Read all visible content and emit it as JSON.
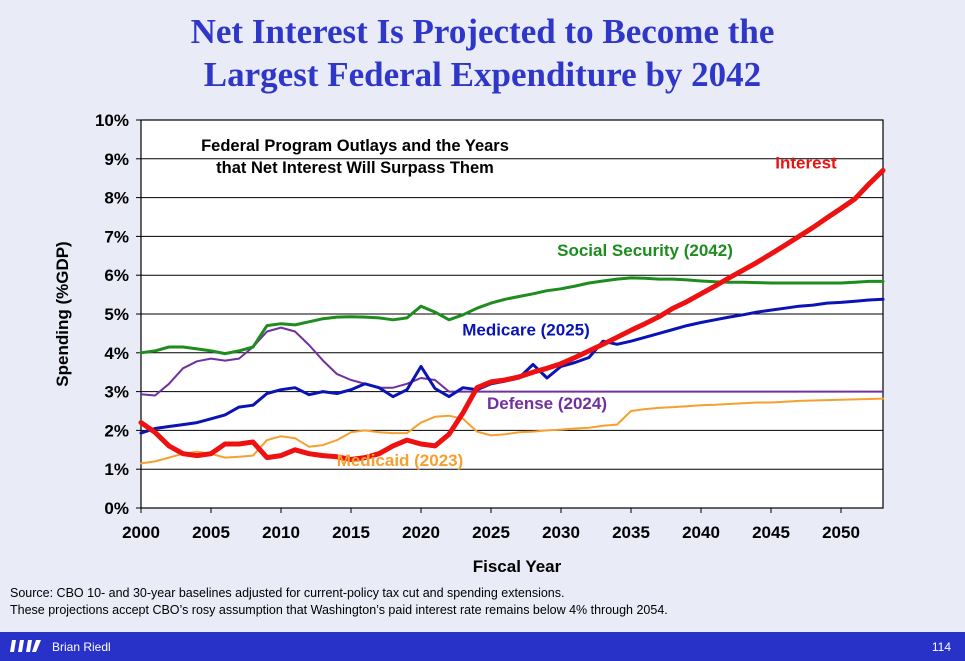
{
  "slide": {
    "title_line1": "Net Interest Is Projected to Become the",
    "title_line2": "Largest Federal Expenditure by 2042",
    "source_line1": "Source: CBO 10- and 30-year baselines adjusted for current-policy tax cut and spending extensions.",
    "source_line2": "These projections accept CBO’s rosy assumption that Washington’s paid interest rate remains below 4% through 2054.",
    "author": "Brian Riedl",
    "page_number": "114",
    "logo_icon": "bars-logo-icon"
  },
  "chart_data": {
    "type": "line",
    "title_line1": "Federal Program Outlays and the Years",
    "title_line2": "that Net Interest Will Surpass Them",
    "xlabel": "Fiscal Year",
    "ylabel": "Spending (%GDP)",
    "xlim": [
      2000,
      2053
    ],
    "ylim": [
      0,
      10
    ],
    "x_ticks": [
      2000,
      2005,
      2010,
      2015,
      2020,
      2025,
      2030,
      2035,
      2040,
      2045,
      2050
    ],
    "y_ticks": [
      "0%",
      "1%",
      "2%",
      "3%",
      "4%",
      "5%",
      "6%",
      "7%",
      "8%",
      "9%",
      "10%"
    ],
    "grid": "horizontal",
    "series": [
      {
        "name": "Social Security",
        "label": "Social Security (2042)",
        "color": "#1e8c1e",
        "values": [
          [
            2000,
            4.0
          ],
          [
            2001,
            4.05
          ],
          [
            2002,
            4.15
          ],
          [
            2003,
            4.15
          ],
          [
            2004,
            4.1
          ],
          [
            2005,
            4.05
          ],
          [
            2006,
            3.98
          ],
          [
            2007,
            4.05
          ],
          [
            2008,
            4.15
          ],
          [
            2009,
            4.7
          ],
          [
            2010,
            4.75
          ],
          [
            2011,
            4.72
          ],
          [
            2012,
            4.8
          ],
          [
            2013,
            4.88
          ],
          [
            2014,
            4.92
          ],
          [
            2015,
            4.93
          ],
          [
            2016,
            4.92
          ],
          [
            2017,
            4.9
          ],
          [
            2018,
            4.85
          ],
          [
            2019,
            4.9
          ],
          [
            2020,
            5.2
          ],
          [
            2021,
            5.05
          ],
          [
            2022,
            4.85
          ],
          [
            2023,
            4.98
          ],
          [
            2024,
            5.15
          ],
          [
            2025,
            5.28
          ],
          [
            2026,
            5.38
          ],
          [
            2027,
            5.45
          ],
          [
            2028,
            5.52
          ],
          [
            2029,
            5.6
          ],
          [
            2030,
            5.65
          ],
          [
            2031,
            5.72
          ],
          [
            2032,
            5.8
          ],
          [
            2033,
            5.85
          ],
          [
            2034,
            5.9
          ],
          [
            2035,
            5.93
          ],
          [
            2036,
            5.92
          ],
          [
            2037,
            5.9
          ],
          [
            2038,
            5.9
          ],
          [
            2039,
            5.88
          ],
          [
            2040,
            5.85
          ],
          [
            2041,
            5.83
          ],
          [
            2042,
            5.82
          ],
          [
            2043,
            5.82
          ],
          [
            2044,
            5.81
          ],
          [
            2045,
            5.8
          ],
          [
            2046,
            5.8
          ],
          [
            2047,
            5.8
          ],
          [
            2048,
            5.8
          ],
          [
            2049,
            5.8
          ],
          [
            2050,
            5.8
          ],
          [
            2051,
            5.82
          ],
          [
            2052,
            5.84
          ],
          [
            2053,
            5.84
          ]
        ]
      },
      {
        "name": "Medicare",
        "label": "Medicare (2025)",
        "color": "#0a14b4",
        "values": [
          [
            2000,
            1.93
          ],
          [
            2001,
            2.05
          ],
          [
            2002,
            2.1
          ],
          [
            2003,
            2.15
          ],
          [
            2004,
            2.2
          ],
          [
            2005,
            2.3
          ],
          [
            2006,
            2.4
          ],
          [
            2007,
            2.6
          ],
          [
            2008,
            2.65
          ],
          [
            2009,
            2.95
          ],
          [
            2010,
            3.05
          ],
          [
            2011,
            3.1
          ],
          [
            2012,
            2.92
          ],
          [
            2013,
            3.0
          ],
          [
            2014,
            2.95
          ],
          [
            2015,
            3.05
          ],
          [
            2016,
            3.2
          ],
          [
            2017,
            3.1
          ],
          [
            2018,
            2.87
          ],
          [
            2019,
            3.05
          ],
          [
            2020,
            3.65
          ],
          [
            2021,
            3.08
          ],
          [
            2022,
            2.87
          ],
          [
            2023,
            3.1
          ],
          [
            2024,
            3.05
          ],
          [
            2025,
            3.2
          ],
          [
            2026,
            3.27
          ],
          [
            2027,
            3.35
          ],
          [
            2028,
            3.7
          ],
          [
            2029,
            3.35
          ],
          [
            2030,
            3.65
          ],
          [
            2031,
            3.75
          ],
          [
            2032,
            3.88
          ],
          [
            2033,
            4.3
          ],
          [
            2034,
            4.22
          ],
          [
            2035,
            4.3
          ],
          [
            2036,
            4.4
          ],
          [
            2037,
            4.5
          ],
          [
            2038,
            4.6
          ],
          [
            2039,
            4.7
          ],
          [
            2040,
            4.78
          ],
          [
            2041,
            4.85
          ],
          [
            2042,
            4.92
          ],
          [
            2043,
            4.98
          ],
          [
            2044,
            5.05
          ],
          [
            2045,
            5.1
          ],
          [
            2046,
            5.15
          ],
          [
            2047,
            5.2
          ],
          [
            2048,
            5.23
          ],
          [
            2049,
            5.28
          ],
          [
            2050,
            5.3
          ],
          [
            2051,
            5.33
          ],
          [
            2052,
            5.36
          ],
          [
            2053,
            5.38
          ]
        ]
      },
      {
        "name": "Defense",
        "label": "Defense (2024)",
        "color": "#7030a0",
        "values": [
          [
            2000,
            2.93
          ],
          [
            2001,
            2.9
          ],
          [
            2002,
            3.2
          ],
          [
            2003,
            3.6
          ],
          [
            2004,
            3.78
          ],
          [
            2005,
            3.85
          ],
          [
            2006,
            3.8
          ],
          [
            2007,
            3.85
          ],
          [
            2008,
            4.15
          ],
          [
            2009,
            4.55
          ],
          [
            2010,
            4.65
          ],
          [
            2011,
            4.55
          ],
          [
            2012,
            4.2
          ],
          [
            2013,
            3.8
          ],
          [
            2014,
            3.45
          ],
          [
            2015,
            3.3
          ],
          [
            2016,
            3.2
          ],
          [
            2017,
            3.1
          ],
          [
            2018,
            3.1
          ],
          [
            2019,
            3.2
          ],
          [
            2020,
            3.35
          ],
          [
            2021,
            3.3
          ],
          [
            2022,
            3.0
          ],
          [
            2023,
            3.0
          ],
          [
            2024,
            3.0
          ],
          [
            2025,
            3.0
          ],
          [
            2030,
            3.0
          ],
          [
            2035,
            3.0
          ],
          [
            2040,
            3.0
          ],
          [
            2045,
            3.0
          ],
          [
            2050,
            3.0
          ],
          [
            2053,
            3.0
          ]
        ]
      },
      {
        "name": "Medicaid",
        "label": "Medicaid (2023)",
        "color": "#f5a030",
        "values": [
          [
            2000,
            1.15
          ],
          [
            2001,
            1.2
          ],
          [
            2002,
            1.3
          ],
          [
            2003,
            1.4
          ],
          [
            2004,
            1.45
          ],
          [
            2005,
            1.4
          ],
          [
            2006,
            1.3
          ],
          [
            2007,
            1.32
          ],
          [
            2008,
            1.35
          ],
          [
            2009,
            1.75
          ],
          [
            2010,
            1.85
          ],
          [
            2011,
            1.8
          ],
          [
            2012,
            1.58
          ],
          [
            2013,
            1.62
          ],
          [
            2014,
            1.75
          ],
          [
            2015,
            1.95
          ],
          [
            2016,
            2.0
          ],
          [
            2017,
            1.95
          ],
          [
            2018,
            1.93
          ],
          [
            2019,
            1.93
          ],
          [
            2020,
            2.2
          ],
          [
            2021,
            2.35
          ],
          [
            2022,
            2.38
          ],
          [
            2023,
            2.3
          ],
          [
            2024,
            1.97
          ],
          [
            2025,
            1.87
          ],
          [
            2026,
            1.9
          ],
          [
            2027,
            1.95
          ],
          [
            2028,
            1.97
          ],
          [
            2029,
            2.0
          ],
          [
            2030,
            2.02
          ],
          [
            2031,
            2.05
          ],
          [
            2032,
            2.07
          ],
          [
            2033,
            2.12
          ],
          [
            2034,
            2.15
          ],
          [
            2035,
            2.5
          ],
          [
            2036,
            2.55
          ],
          [
            2037,
            2.58
          ],
          [
            2038,
            2.6
          ],
          [
            2039,
            2.62
          ],
          [
            2040,
            2.65
          ],
          [
            2041,
            2.66
          ],
          [
            2042,
            2.68
          ],
          [
            2043,
            2.7
          ],
          [
            2044,
            2.72
          ],
          [
            2045,
            2.72
          ],
          [
            2046,
            2.74
          ],
          [
            2047,
            2.76
          ],
          [
            2048,
            2.77
          ],
          [
            2049,
            2.78
          ],
          [
            2050,
            2.79
          ],
          [
            2051,
            2.8
          ],
          [
            2052,
            2.81
          ],
          [
            2053,
            2.82
          ]
        ]
      },
      {
        "name": "Interest",
        "label": "Interest",
        "color": "#ee1111",
        "values": [
          [
            2000,
            2.2
          ],
          [
            2001,
            1.95
          ],
          [
            2002,
            1.6
          ],
          [
            2003,
            1.4
          ],
          [
            2004,
            1.35
          ],
          [
            2005,
            1.4
          ],
          [
            2006,
            1.65
          ],
          [
            2007,
            1.65
          ],
          [
            2008,
            1.7
          ],
          [
            2009,
            1.3
          ],
          [
            2010,
            1.35
          ],
          [
            2011,
            1.5
          ],
          [
            2012,
            1.4
          ],
          [
            2013,
            1.35
          ],
          [
            2014,
            1.32
          ],
          [
            2015,
            1.25
          ],
          [
            2016,
            1.3
          ],
          [
            2017,
            1.4
          ],
          [
            2018,
            1.6
          ],
          [
            2019,
            1.75
          ],
          [
            2020,
            1.65
          ],
          [
            2021,
            1.6
          ],
          [
            2022,
            1.9
          ],
          [
            2023,
            2.45
          ],
          [
            2024,
            3.1
          ],
          [
            2025,
            3.25
          ],
          [
            2026,
            3.3
          ],
          [
            2027,
            3.38
          ],
          [
            2028,
            3.5
          ],
          [
            2029,
            3.6
          ],
          [
            2030,
            3.72
          ],
          [
            2031,
            3.88
          ],
          [
            2032,
            4.05
          ],
          [
            2033,
            4.22
          ],
          [
            2034,
            4.4
          ],
          [
            2035,
            4.58
          ],
          [
            2036,
            4.75
          ],
          [
            2037,
            4.93
          ],
          [
            2038,
            5.15
          ],
          [
            2039,
            5.32
          ],
          [
            2040,
            5.52
          ],
          [
            2041,
            5.72
          ],
          [
            2042,
            5.93
          ],
          [
            2043,
            6.13
          ],
          [
            2044,
            6.33
          ],
          [
            2045,
            6.55
          ],
          [
            2046,
            6.77
          ],
          [
            2047,
            7.0
          ],
          [
            2048,
            7.23
          ],
          [
            2049,
            7.48
          ],
          [
            2050,
            7.72
          ],
          [
            2051,
            7.97
          ],
          [
            2052,
            8.35
          ],
          [
            2053,
            8.7
          ]
        ]
      }
    ]
  }
}
